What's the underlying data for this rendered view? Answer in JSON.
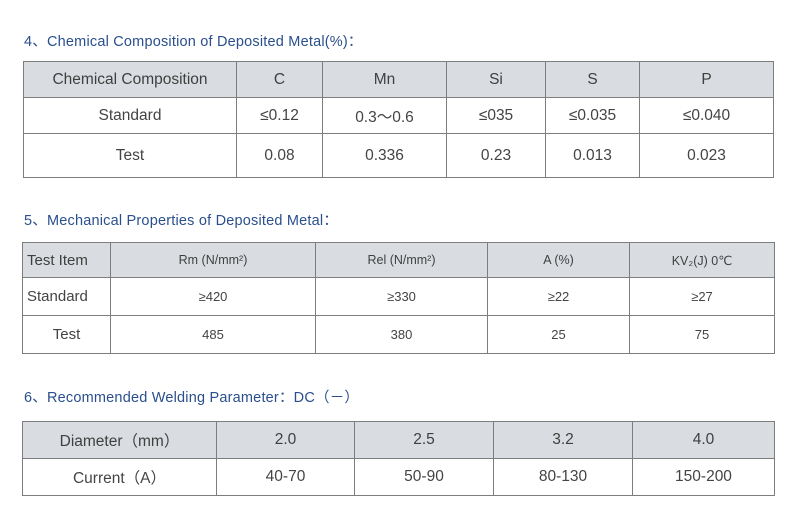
{
  "section4": {
    "heading": "4、Chemical Composition of Deposited Metal(%)：",
    "header": [
      "Chemical Composition",
      "C",
      "Mn",
      "Si",
      "S",
      "P"
    ],
    "rows": [
      [
        "Standard",
        "≤0.12",
        "0.3～0.6",
        "≤035",
        "≤0.035",
        "≤0.040"
      ],
      [
        "Test",
        "0.08",
        "0.336",
        "0.23",
        "0.013",
        "0.023"
      ]
    ]
  },
  "section5": {
    "heading": "5、Mechanical Properties of Deposited Metal：",
    "header": [
      "Test Item",
      "Rm (N/mm²)",
      "Rel (N/mm²)",
      "A (%)",
      "KV₂(J) 0℃"
    ],
    "rows": [
      [
        "Standard",
        "≥420",
        "≥330",
        "≥22",
        "≥27"
      ],
      [
        "Test",
        "485",
        "380",
        "25",
        "75"
      ]
    ]
  },
  "section6": {
    "heading": "6、Recommended Welding Parameter：DC（－）",
    "header": [
      "Diameter（mm）",
      "2.0",
      "2.5",
      "3.2",
      "4.0"
    ],
    "rows": [
      [
        "Current（A）",
        "40-70",
        "50-90",
        "80-130",
        "150-200"
      ]
    ]
  }
}
